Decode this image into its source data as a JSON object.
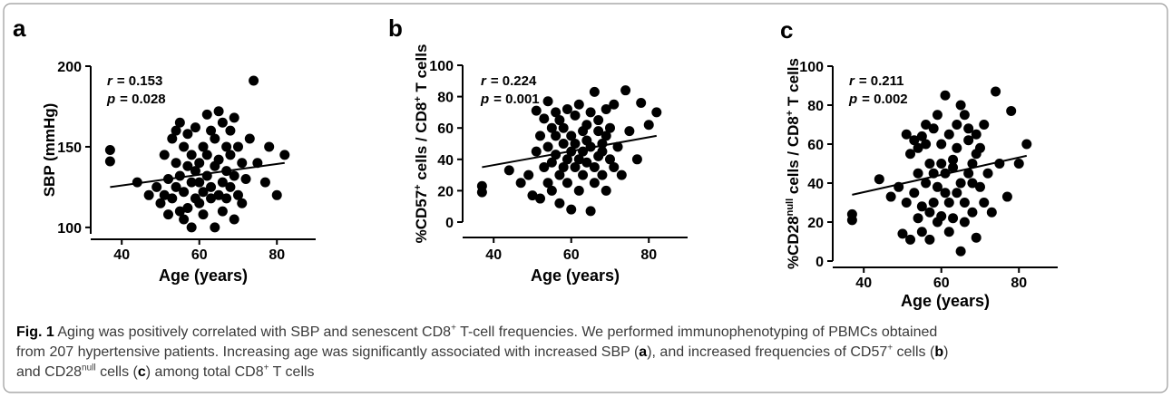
{
  "chart_data": [
    {
      "type": "scatter",
      "panel_label": "a",
      "color": "#000000",
      "ylabel": [
        {
          "text": "SBP (mmHg)"
        }
      ],
      "xlabel": "Age (years)",
      "annotations": [
        {
          "symbol": "r",
          "text": "= 0.153"
        },
        {
          "symbol": "p",
          "text": "= 0.028"
        }
      ],
      "x": [
        37,
        37,
        44,
        47,
        49,
        50,
        51,
        51,
        52,
        52,
        53,
        53,
        54,
        54,
        54,
        55,
        55,
        55,
        56,
        56,
        56,
        57,
        57,
        57,
        58,
        58,
        58,
        59,
        59,
        59,
        60,
        60,
        60,
        61,
        61,
        61,
        62,
        62,
        62,
        63,
        63,
        63,
        64,
        64,
        64,
        65,
        65,
        65,
        66,
        66,
        66,
        67,
        67,
        67,
        68,
        68,
        68,
        69,
        69,
        69,
        70,
        70,
        71,
        71,
        72,
        73,
        74,
        75,
        77,
        78,
        80,
        82
      ],
      "y": [
        148,
        141,
        128,
        120,
        125,
        115,
        145,
        120,
        130,
        108,
        155,
        118,
        160,
        125,
        140,
        110,
        165,
        132,
        150,
        105,
        122,
        138,
        158,
        112,
        128,
        145,
        100,
        118,
        135,
        162,
        115,
        140,
        128,
        150,
        122,
        108,
        170,
        132,
        145,
        118,
        160,
        125,
        100,
        138,
        155,
        172,
        120,
        142,
        128,
        165,
        110,
        150,
        135,
        118,
        160,
        125,
        145,
        105,
        132,
        168,
        150,
        120,
        140,
        115,
        130,
        155,
        191,
        140,
        128,
        150,
        120,
        145
      ],
      "trend": {
        "x": [
          37,
          82
        ],
        "y": [
          125,
          140
        ]
      },
      "xlim": [
        32,
        90
      ],
      "ylim": [
        96,
        200
      ],
      "xticks": [
        40,
        60,
        80
      ],
      "yticks": [
        100,
        150,
        200
      ]
    },
    {
      "type": "scatter",
      "panel_label": "b",
      "color": "#000000",
      "ylabel": [
        {
          "text": "%CD57"
        },
        {
          "text": "+",
          "style": "sup"
        },
        {
          "text": " cells / CD8"
        },
        {
          "text": "+",
          "style": "sup"
        },
        {
          "text": " T cells"
        }
      ],
      "xlabel": "Age (years)",
      "annotations": [
        {
          "symbol": "r",
          "text": "= 0.224"
        },
        {
          "symbol": "p",
          "text": "= 0.001"
        }
      ],
      "x": [
        37,
        37,
        44,
        47,
        49,
        50,
        51,
        51,
        52,
        52,
        53,
        53,
        54,
        54,
        54,
        55,
        55,
        55,
        56,
        56,
        56,
        57,
        57,
        57,
        58,
        58,
        58,
        59,
        59,
        59,
        60,
        60,
        60,
        61,
        61,
        61,
        62,
        62,
        62,
        63,
        63,
        63,
        64,
        64,
        64,
        65,
        65,
        65,
        66,
        66,
        66,
        67,
        67,
        67,
        68,
        68,
        68,
        69,
        69,
        69,
        70,
        70,
        71,
        71,
        72,
        73,
        74,
        75,
        77,
        78,
        80,
        82
      ],
      "y": [
        23,
        19,
        33,
        25,
        30,
        17,
        71,
        45,
        15,
        55,
        66,
        35,
        77,
        48,
        25,
        60,
        38,
        20,
        70,
        43,
        55,
        30,
        65,
        12,
        50,
        35,
        60,
        40,
        25,
        72,
        45,
        8,
        55,
        35,
        68,
        50,
        40,
        75,
        20,
        58,
        45,
        30,
        62,
        38,
        52,
        70,
        7,
        48,
        35,
        83,
        25,
        58,
        42,
        65,
        30,
        50,
        45,
        72,
        20,
        55,
        40,
        60,
        35,
        75,
        48,
        30,
        84,
        58,
        40,
        76,
        62,
        70
      ],
      "trend": {
        "x": [
          37,
          82
        ],
        "y": [
          35,
          55
        ]
      },
      "xlim": [
        32,
        90
      ],
      "ylim": [
        0,
        100
      ],
      "xticks": [
        40,
        60,
        80
      ],
      "yticks": [
        0,
        20,
        40,
        60,
        80,
        100
      ]
    },
    {
      "type": "scatter",
      "panel_label": "c",
      "color": "#000000",
      "ylabel": [
        {
          "text": "%CD28"
        },
        {
          "text": "null",
          "style": "sup"
        },
        {
          "text": " cells / CD8"
        },
        {
          "text": "+",
          "style": "sup"
        },
        {
          "text": " T cells"
        }
      ],
      "xlabel": "Age (years)",
      "annotations": [
        {
          "symbol": "r",
          "text": "= 0.211"
        },
        {
          "symbol": "p",
          "text": "= 0.002"
        }
      ],
      "x": [
        37,
        37,
        44,
        47,
        49,
        50,
        51,
        51,
        52,
        52,
        53,
        53,
        54,
        54,
        54,
        55,
        55,
        55,
        56,
        56,
        56,
        57,
        57,
        57,
        58,
        58,
        58,
        59,
        59,
        59,
        60,
        60,
        60,
        61,
        61,
        61,
        62,
        62,
        62,
        63,
        63,
        63,
        64,
        64,
        64,
        65,
        65,
        65,
        66,
        66,
        66,
        67,
        67,
        67,
        68,
        68,
        68,
        69,
        69,
        69,
        70,
        70,
        71,
        71,
        72,
        73,
        74,
        75,
        77,
        78,
        80,
        82
      ],
      "y": [
        24,
        21,
        42,
        33,
        38,
        14,
        65,
        30,
        11,
        55,
        62,
        35,
        58,
        45,
        22,
        64,
        28,
        15,
        70,
        40,
        60,
        25,
        50,
        11,
        45,
        30,
        68,
        38,
        20,
        75,
        50,
        23,
        60,
        35,
        85,
        45,
        30,
        65,
        15,
        52,
        48,
        22,
        70,
        35,
        58,
        80,
        5,
        40,
        30,
        75,
        20,
        62,
        45,
        68,
        25,
        50,
        40,
        65,
        12,
        55,
        38,
        58,
        30,
        70,
        45,
        25,
        87,
        50,
        33,
        77,
        50,
        60
      ],
      "trend": {
        "x": [
          37,
          82
        ],
        "y": [
          34,
          54
        ]
      },
      "xlim": [
        32,
        90
      ],
      "ylim": [
        0,
        100
      ],
      "xticks": [
        40,
        60,
        80
      ],
      "yticks": [
        0,
        20,
        40,
        60,
        80,
        100
      ]
    }
  ],
  "caption": [
    [
      {
        "text": "Fig. 1",
        "style": "bold"
      },
      {
        "text": " Aging was positively correlated with SBP and senescent CD8"
      },
      {
        "text": "+",
        "style": "sup"
      },
      {
        "text": " T-cell frequencies. We performed immunophenotyping of PBMCs obtained"
      }
    ],
    [
      {
        "text": "from 207 hypertensive patients. Increasing age was significantly associated with increased SBP ("
      },
      {
        "text": "a",
        "style": "bold"
      },
      {
        "text": "), and increased frequencies of CD57"
      },
      {
        "text": "+",
        "style": "sup"
      },
      {
        "text": " cells ("
      },
      {
        "text": "b",
        "style": "bold"
      },
      {
        "text": ")"
      }
    ],
    [
      {
        "text": "and CD28"
      },
      {
        "text": "null",
        "style": "sup"
      },
      {
        "text": " cells ("
      },
      {
        "text": "c",
        "style": "bold"
      },
      {
        "text": ") among total CD8"
      },
      {
        "text": "+",
        "style": "sup"
      },
      {
        "text": " T cells"
      }
    ]
  ]
}
